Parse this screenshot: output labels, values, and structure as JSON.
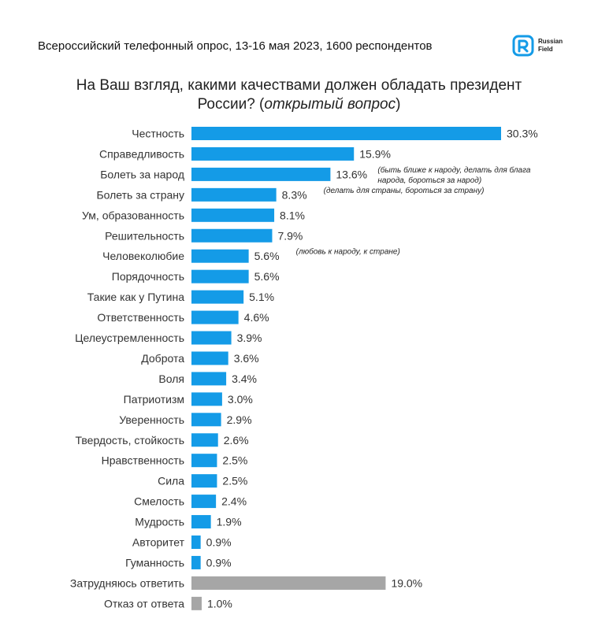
{
  "header": {
    "survey_info": "Всероссийский телефонный опрос, 13-16 мая 2023, 1600 респондентов",
    "logo_line1": "Russian",
    "logo_line2": "Field"
  },
  "question": {
    "line1": "На Ваш взгляд, какими качествами должен обладать президент",
    "line2_plain": "России? (",
    "line2_italic": "открытый вопрос",
    "line2_close": ")"
  },
  "colors": {
    "bar": "#149be7",
    "bar_neutral": "#a6a6a6",
    "logo": "#149be7"
  },
  "chart_data": {
    "type": "bar",
    "orientation": "horizontal",
    "value_suffix": "%",
    "decimals": 1,
    "grid": false,
    "categories": [
      "Честность",
      "Справедливость",
      "Болеть за народ",
      "Болеть за страну",
      "Ум, образованность",
      "Решительность",
      "Человеколюбие",
      "Порядочность",
      "Такие как у Путина",
      "Ответственность",
      "Целеустремленность",
      "Доброта",
      "Воля",
      "Патриотизм",
      "Уверенность",
      "Твердость, стойкость",
      "Нравственность",
      "Сила",
      "Смелость",
      "Мудрость",
      "Авторитет",
      "Гуманность",
      "Затрудняюсь ответить",
      "Отказ от ответа"
    ],
    "values": [
      30.3,
      15.9,
      13.6,
      8.3,
      8.1,
      7.9,
      5.6,
      5.6,
      5.1,
      4.6,
      3.9,
      3.6,
      3.4,
      3.0,
      2.9,
      2.6,
      2.5,
      2.5,
      2.4,
      1.9,
      0.9,
      0.9,
      19.0,
      1.0
    ],
    "neutral_categories": [
      "Затрудняюсь ответить",
      "Отказ от ответа"
    ],
    "annotations": [
      {
        "category": "Болеть за народ",
        "lines": [
          "(быть ближе к народу, делать для блага",
          "народа, бороться за народ)"
        ]
      },
      {
        "category": "Болеть за страну",
        "lines": [
          "(делать для страны, бороться за страну)"
        ]
      },
      {
        "category": "Человеколюбие",
        "lines": [
          "(любовь к народу, к стране)"
        ]
      }
    ]
  }
}
